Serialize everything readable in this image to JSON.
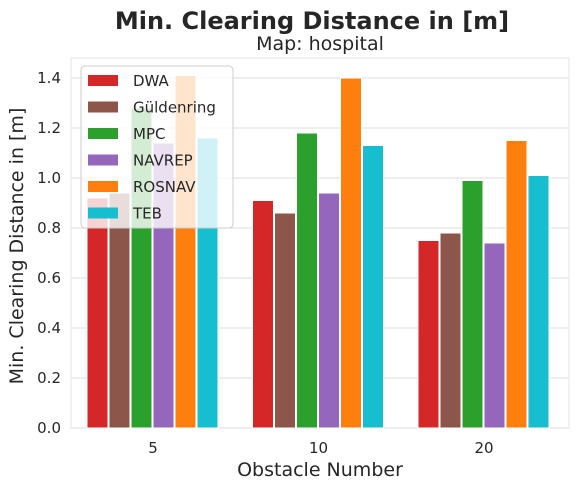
{
  "chart_data": {
    "type": "bar",
    "suptitle": "Min. Clearing Distance in [m]",
    "title": "Map: hospital",
    "xlabel": "Obstacle Number",
    "ylabel": "Min. Clearing Distance in [m]",
    "categories": [
      "5",
      "10",
      "20"
    ],
    "ylim": [
      0,
      1.48
    ],
    "yticks": [
      0.0,
      0.2,
      0.4,
      0.6,
      0.8,
      1.0,
      1.2,
      1.4
    ],
    "ytick_labels": [
      "0.0",
      "0.2",
      "0.4",
      "0.6",
      "0.8",
      "1.0",
      "1.2",
      "1.4"
    ],
    "grid": true,
    "legend_position": "top-left",
    "series": [
      {
        "name": "DWA",
        "color": "#d62728",
        "values": [
          0.92,
          0.91,
          0.75
        ]
      },
      {
        "name": "Güldenring",
        "color": "#8c564b",
        "values": [
          0.94,
          0.86,
          0.78
        ]
      },
      {
        "name": "MPC",
        "color": "#2ca02c",
        "values": [
          1.28,
          1.18,
          0.99
        ]
      },
      {
        "name": "NAVREP",
        "color": "#9467bd",
        "values": [
          1.14,
          0.94,
          0.74
        ]
      },
      {
        "name": "ROSNAV",
        "color": "#ff7f0e",
        "values": [
          1.41,
          1.4,
          1.15
        ]
      },
      {
        "name": "TEB",
        "color": "#17becf",
        "values": [
          1.16,
          1.13,
          1.01
        ]
      }
    ]
  }
}
